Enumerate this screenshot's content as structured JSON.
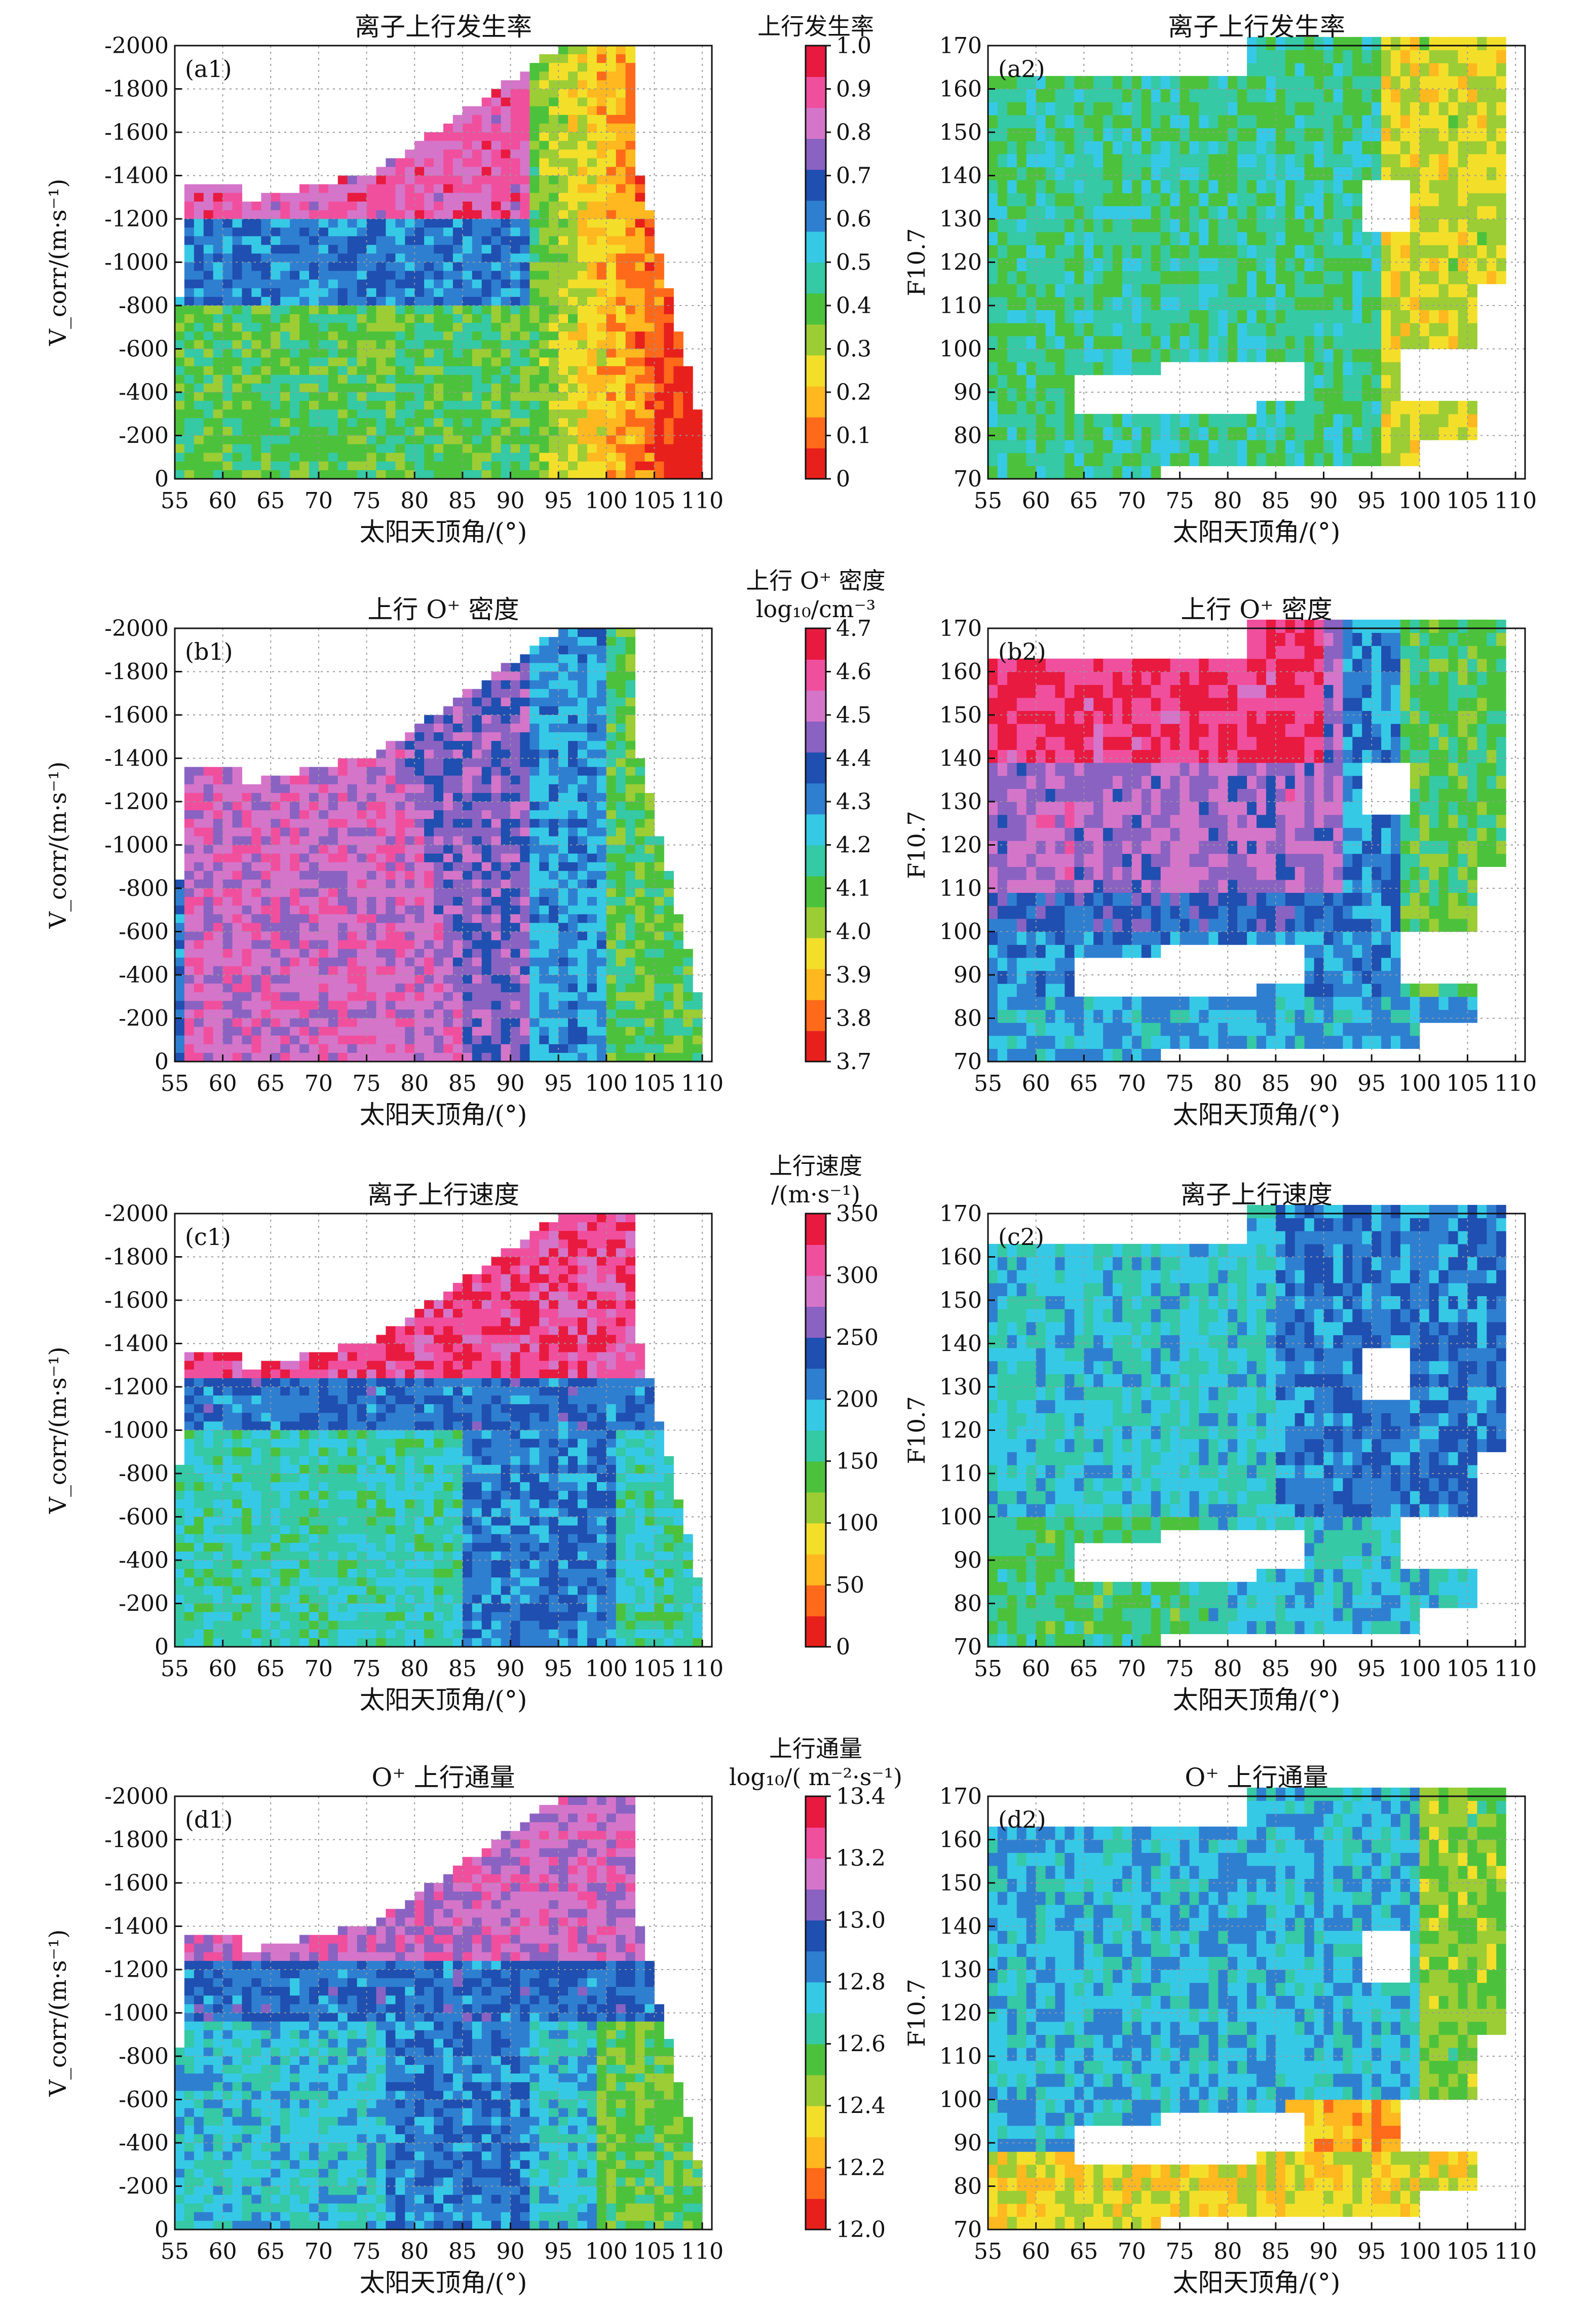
{
  "chart_data": [
    {
      "panel": "a1",
      "type": "heatmap",
      "title": "离子上行发生率",
      "panel_label": "(a1)",
      "xlabel": "太阳天顶角/(°)",
      "ylabel": "V_corr/(m·s⁻¹)",
      "x_ticks": [
        "55",
        "60",
        "65",
        "70",
        "75",
        "80",
        "85",
        "90",
        "95",
        "100",
        "105",
        "110"
      ],
      "y_ticks": [
        "-2000",
        "-1800",
        "-1600",
        "-1400",
        "-1200",
        "-1000",
        "-800",
        "-600",
        "-400",
        "-200",
        "0"
      ],
      "xlim": [
        55,
        111
      ],
      "ylim": [
        -2000,
        0
      ],
      "y_inverted": true,
      "grid": true,
      "colorbar": {
        "label_lines": [
          "上行发生率"
        ],
        "ticks": [
          "1.0",
          "0.9",
          "0.8",
          "0.7",
          "0.6",
          "0.5",
          "0.4",
          "0.3",
          "0.2",
          "0.1",
          "0"
        ],
        "range": [
          0,
          1
        ]
      },
      "field": "occurrence"
    },
    {
      "panel": "a2",
      "type": "heatmap",
      "title": "离子上行发生率",
      "panel_label": "(a2)",
      "xlabel": "太阳天顶角/(°)",
      "ylabel": "F10.7",
      "x_ticks": [
        "55",
        "60",
        "65",
        "70",
        "75",
        "80",
        "85",
        "90",
        "95",
        "100",
        "105",
        "110"
      ],
      "y_ticks": [
        "170",
        "160",
        "150",
        "140",
        "130",
        "120",
        "110",
        "100",
        "90",
        "80",
        "70"
      ],
      "xlim": [
        55,
        111
      ],
      "ylim": [
        70,
        170
      ],
      "grid": true,
      "colorbar": null,
      "field": "occurrence"
    },
    {
      "panel": "b1",
      "type": "heatmap",
      "title": "上行 O⁺ 密度",
      "panel_label": "(b1)",
      "xlabel": "太阳天顶角/(°)",
      "ylabel": "V_corr/(m·s⁻¹)",
      "x_ticks": [
        "55",
        "60",
        "65",
        "70",
        "75",
        "80",
        "85",
        "90",
        "95",
        "100",
        "105",
        "110"
      ],
      "y_ticks": [
        "-2000",
        "-1800",
        "-1600",
        "-1400",
        "-1200",
        "-1000",
        "-800",
        "-600",
        "-400",
        "-200",
        "0"
      ],
      "xlim": [
        55,
        111
      ],
      "ylim": [
        -2000,
        0
      ],
      "y_inverted": true,
      "grid": true,
      "colorbar": {
        "label_lines": [
          "上行 O⁺ 密度",
          "log₁₀/cm⁻³"
        ],
        "ticks": [
          "4.7",
          "4.6",
          "4.5",
          "4.4",
          "4.3",
          "4.2",
          "4.1",
          "4.0",
          "3.9",
          "3.8",
          "3.7"
        ],
        "range": [
          3.7,
          4.7
        ]
      },
      "field": "density"
    },
    {
      "panel": "b2",
      "type": "heatmap",
      "title": "上行 O⁺ 密度",
      "panel_label": "(b2)",
      "xlabel": "太阳天顶角/(°)",
      "ylabel": "F10.7",
      "x_ticks": [
        "55",
        "60",
        "65",
        "70",
        "75",
        "80",
        "85",
        "90",
        "95",
        "100",
        "105",
        "110"
      ],
      "y_ticks": [
        "170",
        "160",
        "150",
        "140",
        "130",
        "120",
        "110",
        "100",
        "90",
        "80",
        "70"
      ],
      "xlim": [
        55,
        111
      ],
      "ylim": [
        70,
        170
      ],
      "grid": true,
      "colorbar": null,
      "field": "density"
    },
    {
      "panel": "c1",
      "type": "heatmap",
      "title": "离子上行速度",
      "panel_label": "(c1)",
      "xlabel": "太阳天顶角/(°)",
      "ylabel": "V_corr/(m·s⁻¹)",
      "x_ticks": [
        "55",
        "60",
        "65",
        "70",
        "75",
        "80",
        "85",
        "90",
        "95",
        "100",
        "105",
        "110"
      ],
      "y_ticks": [
        "-2000",
        "-1800",
        "-1600",
        "-1400",
        "-1200",
        "-1000",
        "-800",
        "-600",
        "-400",
        "-200",
        "0"
      ],
      "xlim": [
        55,
        111
      ],
      "ylim": [
        -2000,
        0
      ],
      "y_inverted": true,
      "grid": true,
      "colorbar": {
        "label_lines": [
          "上行速度",
          "/(m·s⁻¹)"
        ],
        "ticks": [
          "350",
          "300",
          "250",
          "200",
          "150",
          "100",
          "50",
          "0"
        ],
        "range": [
          0,
          350
        ]
      },
      "field": "velocity"
    },
    {
      "panel": "c2",
      "type": "heatmap",
      "title": "离子上行速度",
      "panel_label": "(c2)",
      "xlabel": "太阳天顶角/(°)",
      "ylabel": "F10.7",
      "x_ticks": [
        "55",
        "60",
        "65",
        "70",
        "75",
        "80",
        "85",
        "90",
        "95",
        "100",
        "105",
        "110"
      ],
      "y_ticks": [
        "170",
        "160",
        "150",
        "140",
        "130",
        "120",
        "110",
        "100",
        "90",
        "80",
        "70"
      ],
      "xlim": [
        55,
        111
      ],
      "ylim": [
        70,
        170
      ],
      "grid": true,
      "colorbar": null,
      "field": "velocity"
    },
    {
      "panel": "d1",
      "type": "heatmap",
      "title": "O⁺ 上行通量",
      "panel_label": "(d1)",
      "xlabel": "太阳天顶角/(°)",
      "ylabel": "V_corr/(m·s⁻¹)",
      "x_ticks": [
        "55",
        "60",
        "65",
        "70",
        "75",
        "80",
        "85",
        "90",
        "95",
        "100",
        "105",
        "110"
      ],
      "y_ticks": [
        "-2000",
        "-1800",
        "-1600",
        "-1400",
        "-1200",
        "-1000",
        "-800",
        "-600",
        "-400",
        "-200",
        "0"
      ],
      "xlim": [
        55,
        111
      ],
      "ylim": [
        -2000,
        0
      ],
      "y_inverted": true,
      "grid": true,
      "colorbar": {
        "label_lines": [
          "上行通量",
          "log₁₀/( m⁻²·s⁻¹)"
        ],
        "ticks": [
          "13.4",
          "13.2",
          "13.0",
          "12.8",
          "12.6",
          "12.4",
          "12.2",
          "12.0"
        ],
        "range": [
          12.0,
          13.4
        ]
      },
      "field": "flux"
    },
    {
      "panel": "d2",
      "type": "heatmap",
      "title": "O⁺ 上行通量",
      "panel_label": "(d2)",
      "xlabel": "太阳天顶角/(°)",
      "ylabel": "F10.7",
      "x_ticks": [
        "55",
        "60",
        "65",
        "70",
        "75",
        "80",
        "85",
        "90",
        "95",
        "100",
        "105",
        "110"
      ],
      "y_ticks": [
        "170",
        "160",
        "150",
        "140",
        "130",
        "120",
        "110",
        "100",
        "90",
        "80",
        "70"
      ],
      "xlim": [
        55,
        111
      ],
      "ylim": [
        70,
        170
      ],
      "grid": true,
      "colorbar": null,
      "field": "flux"
    }
  ],
  "colormap": [
    "#e8201c",
    "#ff6a1a",
    "#ffb81f",
    "#f3df2a",
    "#9ccd35",
    "#4cc23c",
    "#35c9a5",
    "#36c9e6",
    "#2f7fd1",
    "#1f4fb0",
    "#8a62c2",
    "#d575c9",
    "#f04f9e",
    "#e81a40"
  ]
}
